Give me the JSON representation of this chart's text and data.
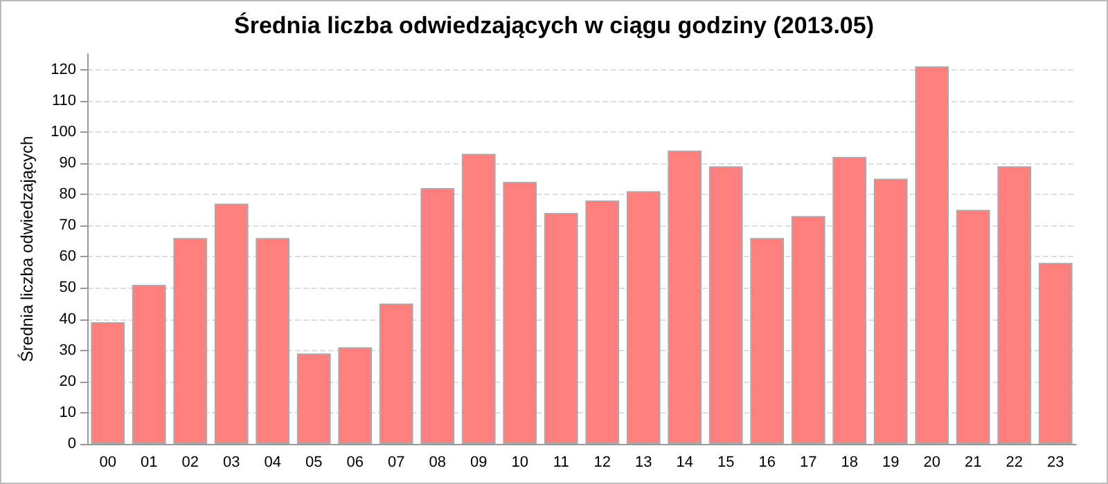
{
  "chart_data": {
    "type": "bar",
    "title": "Średnia liczba odwiedzających w ciągu godziny (2013.05)",
    "ylabel": "Średnia liczba odwiedzających",
    "categories": [
      "00",
      "01",
      "02",
      "03",
      "04",
      "05",
      "06",
      "07",
      "08",
      "09",
      "10",
      "11",
      "12",
      "13",
      "14",
      "15",
      "16",
      "17",
      "18",
      "19",
      "20",
      "21",
      "22",
      "23"
    ],
    "values": [
      39,
      51,
      66,
      77,
      66,
      29,
      31,
      45,
      82,
      93,
      84,
      74,
      78,
      81,
      94,
      89,
      66,
      73,
      92,
      85,
      121,
      75,
      89,
      58
    ],
    "color": "#ff7f7f",
    "ylim": [
      0,
      125
    ],
    "yticks": [
      0,
      10,
      20,
      30,
      40,
      50,
      60,
      70,
      80,
      90,
      100,
      110,
      120
    ],
    "grid": "y"
  }
}
